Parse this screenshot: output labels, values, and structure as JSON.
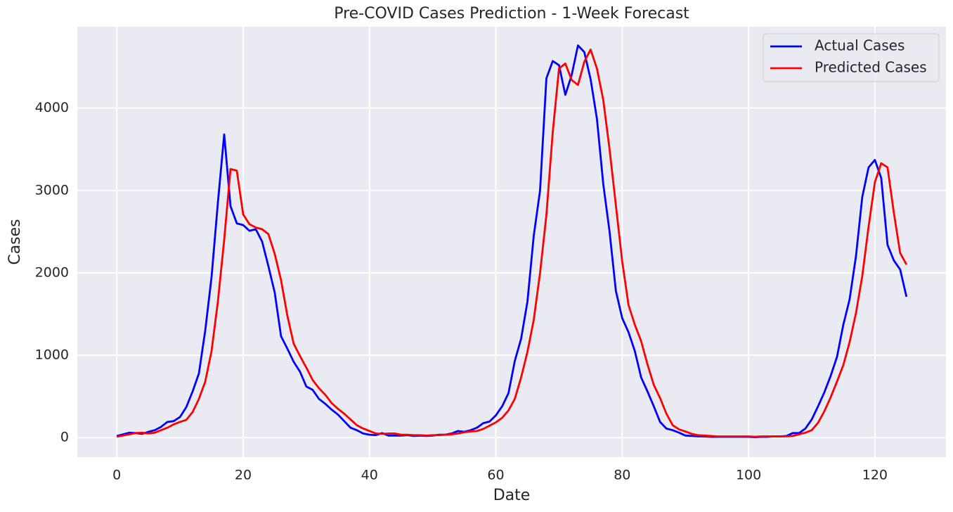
{
  "chart_data": {
    "type": "line",
    "title": "Pre-COVID Cases Prediction - 1-Week Forecast",
    "x_label": "Date",
    "y_label": "Cases",
    "x": [
      0,
      1,
      2,
      3,
      4,
      5,
      6,
      7,
      8,
      9,
      10,
      11,
      12,
      13,
      14,
      15,
      16,
      17,
      18,
      19,
      20,
      21,
      22,
      23,
      24,
      25,
      26,
      27,
      28,
      29,
      30,
      31,
      32,
      33,
      34,
      35,
      36,
      37,
      38,
      39,
      40,
      41,
      42,
      43,
      44,
      45,
      46,
      47,
      48,
      49,
      50,
      51,
      52,
      53,
      54,
      55,
      56,
      57,
      58,
      59,
      60,
      61,
      62,
      63,
      64,
      65,
      66,
      67,
      68,
      69,
      70,
      71,
      72,
      73,
      74,
      75,
      76,
      77,
      78,
      79,
      80,
      81,
      82,
      83,
      84,
      85,
      86,
      87,
      88,
      89,
      90,
      91,
      92,
      93,
      94,
      95,
      96,
      97,
      98,
      99,
      100,
      101,
      102,
      103,
      104,
      105,
      106,
      107,
      108,
      109,
      110,
      111,
      112,
      113,
      114,
      115,
      116,
      117,
      118,
      119,
      120,
      121,
      122,
      123,
      124,
      125
    ],
    "series": [
      {
        "name": "Actual Cases",
        "color": "#0000ff",
        "values": [
          20,
          40,
          60,
          55,
          45,
          70,
          90,
          130,
          190,
          200,
          250,
          370,
          560,
          780,
          1300,
          1950,
          2850,
          3680,
          2810,
          2600,
          2580,
          2510,
          2530,
          2380,
          2080,
          1760,
          1230,
          1080,
          920,
          800,
          620,
          580,
          470,
          410,
          340,
          280,
          200,
          120,
          90,
          50,
          35,
          30,
          55,
          25,
          25,
          25,
          30,
          20,
          25,
          20,
          25,
          35,
          35,
          50,
          80,
          70,
          90,
          120,
          175,
          195,
          270,
          380,
          540,
          930,
          1200,
          1650,
          2450,
          3000,
          4360,
          4570,
          4520,
          4160,
          4400,
          4760,
          4680,
          4350,
          3870,
          3080,
          2500,
          1780,
          1450,
          1280,
          1050,
          730,
          560,
          380,
          190,
          110,
          90,
          60,
          25,
          20,
          15,
          15,
          10,
          10,
          10,
          10,
          10,
          10,
          10,
          5,
          10,
          10,
          15,
          15,
          20,
          55,
          55,
          110,
          220,
          380,
          550,
          750,
          980,
          1370,
          1680,
          2200,
          2920,
          3280,
          3370,
          3150,
          2340,
          2150,
          2040,
          1710
        ]
      },
      {
        "name": "Predicted Cases",
        "color": "#ff0000",
        "values": [
          10,
          25,
          40,
          55,
          60,
          50,
          60,
          90,
          120,
          160,
          190,
          215,
          310,
          470,
          680,
          1050,
          1650,
          2400,
          3260,
          3240,
          2710,
          2590,
          2550,
          2530,
          2470,
          2230,
          1910,
          1480,
          1140,
          990,
          850,
          700,
          600,
          520,
          420,
          350,
          290,
          220,
          150,
          110,
          80,
          50,
          45,
          50,
          50,
          35,
          35,
          30,
          30,
          25,
          30,
          30,
          35,
          40,
          50,
          65,
          75,
          80,
          105,
          145,
          185,
          240,
          330,
          470,
          730,
          1040,
          1430,
          2000,
          2700,
          3700,
          4480,
          4540,
          4340,
          4280,
          4560,
          4710,
          4480,
          4100,
          3500,
          2820,
          2140,
          1610,
          1370,
          1170,
          890,
          640,
          480,
          290,
          150,
          100,
          75,
          45,
          30,
          25,
          20,
          15,
          15,
          15,
          15,
          15,
          15,
          10,
          15,
          15,
          15,
          15,
          15,
          20,
          40,
          60,
          90,
          180,
          320,
          490,
          680,
          880,
          1160,
          1510,
          1960,
          2560,
          3100,
          3330,
          3280,
          2730,
          2240,
          2100
        ]
      }
    ],
    "xlim": [
      -6.25,
      131.25
    ],
    "xticks": [
      0,
      20,
      40,
      60,
      80,
      100,
      120
    ],
    "ylim": [
      -237,
      4987
    ],
    "yticks": [
      0,
      1000,
      2000,
      3000,
      4000
    ],
    "grid": true,
    "legend": "upper right",
    "background": "#eaeaf2"
  }
}
